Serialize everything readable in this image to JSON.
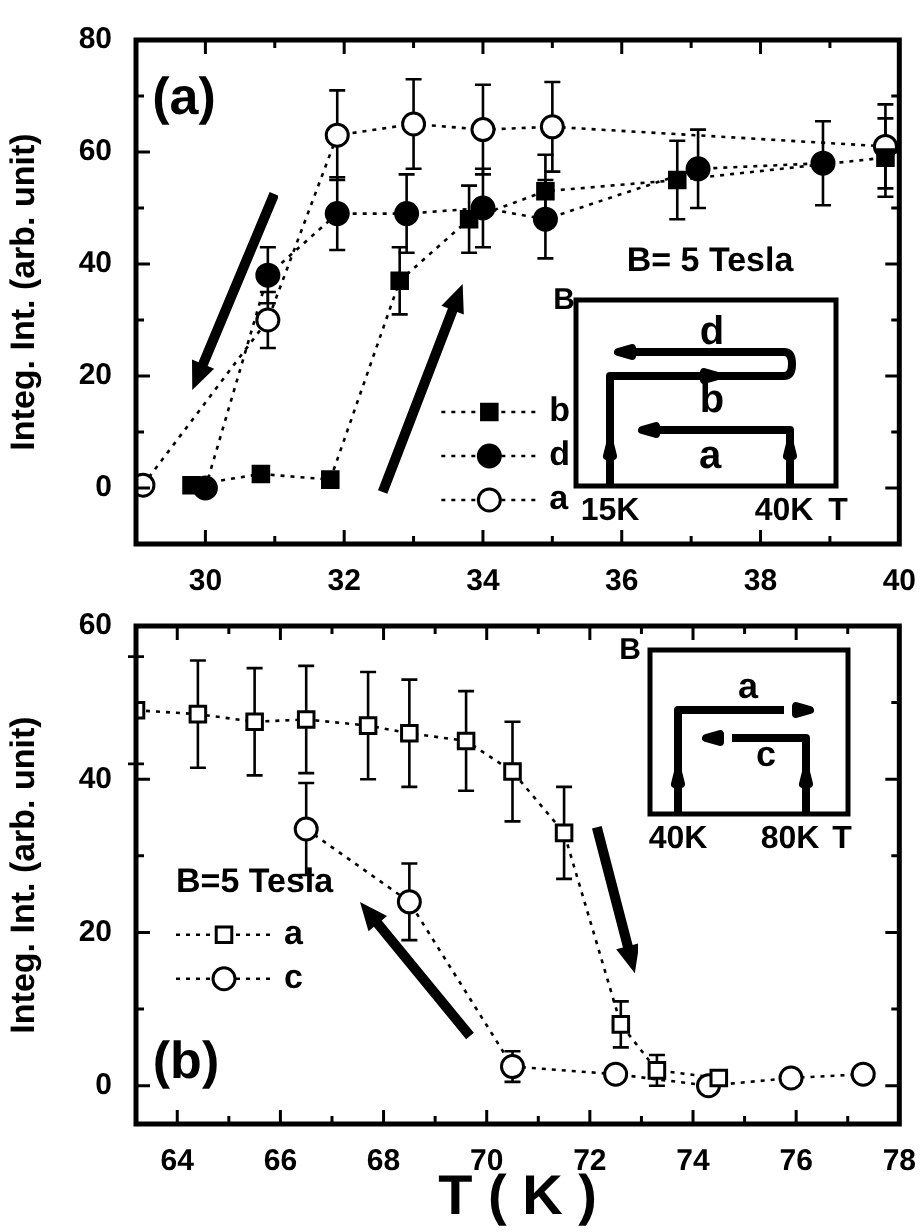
{
  "chart_data": [
    {
      "type": "line",
      "xlim": [
        29,
        40
      ],
      "ylim": [
        -10,
        80
      ],
      "xticks": [
        {
          "value": 29,
          "label": null
        },
        30,
        {
          "value": 31,
          "label": null
        },
        32,
        {
          "value": 33,
          "label": null
        },
        34,
        {
          "value": 35,
          "label": null
        },
        36,
        {
          "value": 37,
          "label": null
        },
        38,
        {
          "value": 39,
          "label": null
        },
        40
      ],
      "yticks": [
        0,
        {
          "value": 10,
          "label": null
        },
        20,
        {
          "value": 30,
          "label": null
        },
        40,
        {
          "value": 50,
          "label": null
        },
        60,
        {
          "value": 70,
          "label": null
        },
        80
      ],
      "ylabel": "Integ. Int. (arb. unit)",
      "line_style": "dotted",
      "legend": "bottom",
      "series": [
        {
          "name": "b",
          "marker": "square",
          "color": "#000000",
          "x": [
            29.8,
            30.8,
            31.8,
            32.8,
            33.8,
            34.9,
            36.8,
            39.8
          ],
          "values": [
            0.5,
            2.5,
            1.5,
            37,
            48,
            53,
            55,
            59
          ],
          "errors": [
            null,
            null,
            null,
            6,
            6,
            6.5,
            7,
            7
          ]
        },
        {
          "name": "d",
          "marker": "circle",
          "color": "#000000",
          "x": [
            30,
            30.9,
            31.9,
            32.9,
            34,
            34.9,
            37.1,
            38.9
          ],
          "values": [
            0,
            38,
            49,
            49,
            50,
            48,
            57,
            58
          ],
          "errors": [
            null,
            5,
            6.5,
            7,
            7,
            7,
            7,
            7.5
          ]
        },
        {
          "name": "a",
          "marker": "circle",
          "color": "#ffffff",
          "x": [
            29.1,
            30.9,
            31.9,
            33,
            34,
            35,
            39.8
          ],
          "values": [
            0.5,
            30,
            63,
            65,
            64,
            64.5,
            61
          ],
          "errors": [
            null,
            5,
            8,
            8,
            8,
            8,
            7.5
          ]
        }
      ],
      "annotations": [
        "(a)",
        "B= 5 Tesla",
        "B",
        "d",
        "b",
        "a",
        "15K",
        "40K",
        "T"
      ]
    },
    {
      "type": "line",
      "xlim": [
        63.2,
        78
      ],
      "ylim": [
        -5,
        60
      ],
      "xticks": [
        64,
        {
          "value": 65,
          "label": null
        },
        66,
        {
          "value": 67,
          "label": null
        },
        68,
        {
          "value": 69,
          "label": null
        },
        70,
        {
          "value": 71,
          "label": null
        },
        72,
        {
          "value": 73,
          "label": null
        },
        74,
        {
          "value": 75,
          "label": null
        },
        76,
        {
          "value": 77,
          "label": null
        },
        78
      ],
      "yticks": [
        0,
        {
          "value": 10,
          "label": null
        },
        20,
        {
          "value": 30,
          "label": null
        },
        40,
        {
          "value": 50,
          "label": null
        },
        60
      ],
      "xlabel": "T ( K )",
      "ylabel": "Integ. Int. (arb. unit)",
      "line_style": "dotted",
      "legend": "left",
      "legend_title": "B=5 Tesla",
      "series": [
        {
          "name": "a",
          "marker": "square",
          "color": "#ffffff",
          "x": [
            63.2,
            64.4,
            65.5,
            66.5,
            67.7,
            68.5,
            69.6,
            70.5,
            71.5,
            72.6,
            73.3,
            74.5
          ],
          "values": [
            49,
            48.5,
            47.5,
            47.8,
            47,
            46,
            45,
            41,
            33,
            8,
            2,
            1
          ],
          "errors": [
            7,
            7,
            7,
            7,
            7,
            7,
            6.5,
            6.5,
            6,
            3,
            2,
            null
          ]
        },
        {
          "name": "c",
          "marker": "circle",
          "color": "#ffffff",
          "x": [
            66.5,
            68.5,
            70.5,
            72.5,
            74.3,
            75.9,
            77.3
          ],
          "values": [
            33.5,
            24,
            2.5,
            1.5,
            0,
            1,
            1.5
          ],
          "errors": [
            6,
            5,
            2,
            null,
            null,
            null,
            null
          ]
        }
      ],
      "annotations": [
        "(b)",
        "B",
        "a",
        "c",
        "40K",
        "80K",
        "T"
      ]
    }
  ]
}
